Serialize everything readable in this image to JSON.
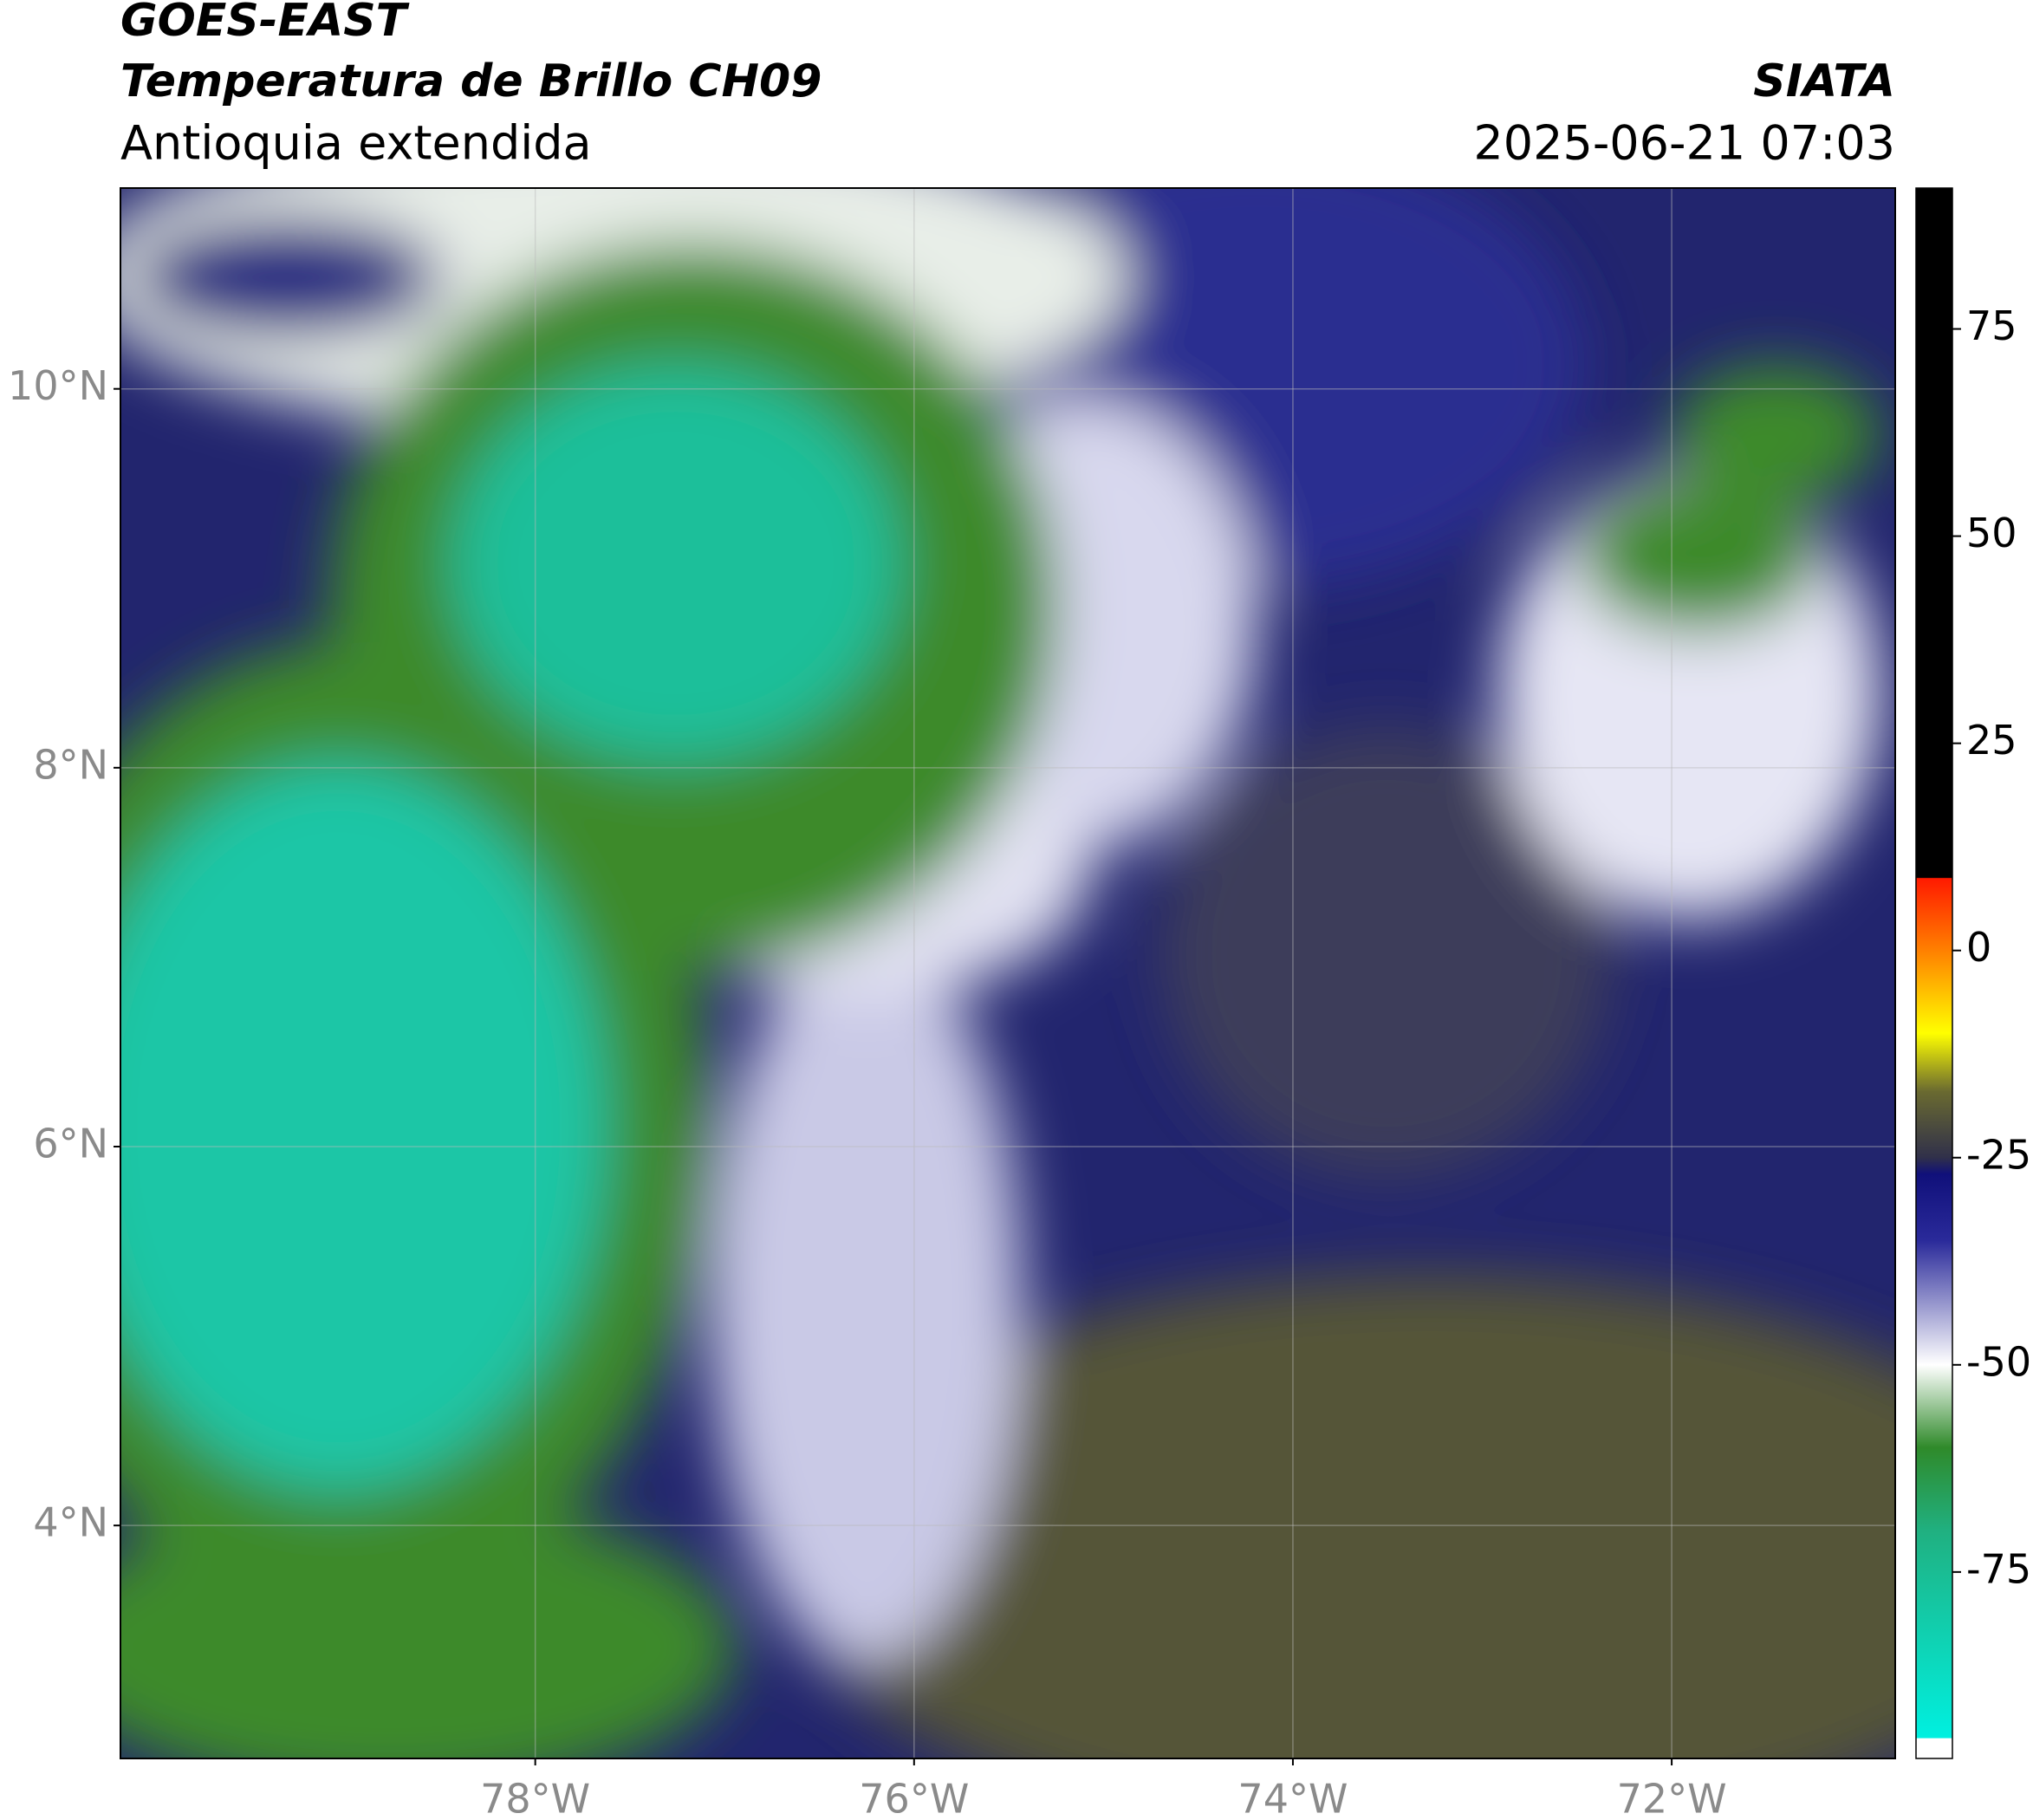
{
  "header": {
    "title": "GOES-EAST",
    "subtitle": "Temperatura de Brillo CH09",
    "region": "Antioquia extendida",
    "source": "SIATA",
    "datetime": "2025-06-21 07:03"
  },
  "map": {
    "xlim": [
      -80.19,
      -70.82
    ],
    "ylim": [
      2.77,
      11.06
    ],
    "xticks": [
      {
        "value": -78,
        "label": "78°W"
      },
      {
        "value": -76,
        "label": "76°W"
      },
      {
        "value": -74,
        "label": "74°W"
      },
      {
        "value": -72,
        "label": "72°W"
      }
    ],
    "yticks": [
      {
        "value": 10,
        "label": "10°N"
      },
      {
        "value": 8,
        "label": "8°N"
      },
      {
        "value": 6,
        "label": "6°N"
      },
      {
        "value": 4,
        "label": "4°N"
      }
    ],
    "grid": true
  },
  "colorbar": {
    "lim": [
      -97.5,
      92
    ],
    "ticks": [
      75,
      50,
      25,
      0,
      -25,
      -50,
      -75
    ],
    "stops": [
      {
        "value": 92,
        "color": "#000000"
      },
      {
        "value": 8.8,
        "color": "#000000"
      },
      {
        "value": 8.7,
        "color": "#ff1a00"
      },
      {
        "value": 0,
        "color": "#ff8000"
      },
      {
        "value": -10,
        "color": "#ffff00"
      },
      {
        "value": -17,
        "color": "#6a6a30"
      },
      {
        "value": -25,
        "color": "#30304a"
      },
      {
        "value": -27,
        "color": "#10107a"
      },
      {
        "value": -35,
        "color": "#2a2a9a"
      },
      {
        "value": -50,
        "color": "#ffffff"
      },
      {
        "value": -60,
        "color": "#2f8a2a"
      },
      {
        "value": -70,
        "color": "#20b080"
      },
      {
        "value": -95,
        "color": "#00f0e0"
      },
      {
        "value": -95.1,
        "color": "#ffffff"
      },
      {
        "value": -97.5,
        "color": "#ffffff"
      }
    ]
  }
}
